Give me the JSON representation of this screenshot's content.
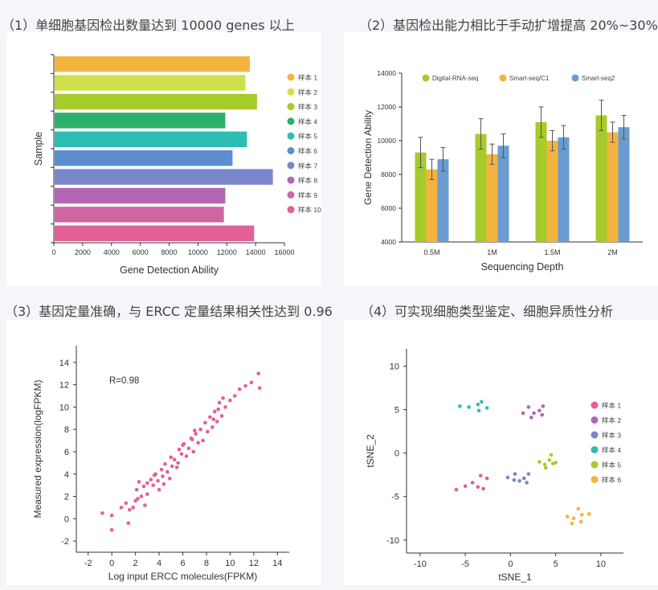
{
  "titles": {
    "p1": "（1）单细胞基因检出数量达到 10000 genes 以上",
    "p2": "（2）基因检出能力相比于手动扩增提高 20%~30%",
    "p3": "（3）基因定量准确，与 ERCC 定量结果相关性达到 0.96",
    "p4": "（4）可实现细胞类型鉴定、细胞异质性分析"
  },
  "colors": {
    "bar_panel": [
      "#f3b43f",
      "#cfe04b",
      "#a6cb2b",
      "#2db06a",
      "#2cbdb4",
      "#5b8fd0",
      "#7a86cb",
      "#b266b5",
      "#d065a4",
      "#e45f96"
    ],
    "grouped": [
      "#a6cb2b",
      "#f3b43f",
      "#6a9cd2"
    ],
    "scatter_pink": "#e45f96",
    "tsne": [
      "#e45f96",
      "#b266b5",
      "#7a86cb",
      "#2cbdb4",
      "#a6cb2b",
      "#f3b43f"
    ]
  },
  "chart_data": [
    {
      "type": "bar",
      "orientation": "horizontal",
      "title": "（1）单细胞基因检出数量达到 10000 genes 以上",
      "xlabel": "Gene Detection Ability",
      "ylabel": "Sample",
      "xlim": [
        0,
        16000
      ],
      "xticks": [
        "0",
        "2000",
        "4000",
        "6000",
        "8000",
        "10000",
        "12000",
        "14000",
        "16000"
      ],
      "xtick_values": [
        0,
        2000,
        4000,
        6000,
        8000,
        10000,
        12000,
        14000,
        16000
      ],
      "categories": [
        "样本 1",
        "样本 2",
        "样本 3",
        "样本 4",
        "样本 5",
        "样本 6",
        "样本 7",
        "样本 8",
        "样本 9",
        "样本 10"
      ],
      "values": [
        13600,
        13300,
        14100,
        11900,
        13400,
        12400,
        15200,
        11900,
        11800,
        13900
      ],
      "legend_position": "right"
    },
    {
      "type": "bar",
      "title": "（2）基因检出能力相比于手动扩增提高 20%~30%",
      "xlabel": "Sequencing Depth",
      "ylabel": "Gene Detection Ability",
      "ylim": [
        4000,
        14000
      ],
      "yticks": [
        "4000",
        "6000",
        "8000",
        "10000",
        "12000",
        "14000"
      ],
      "ytick_values": [
        4000,
        6000,
        8000,
        10000,
        12000,
        14000
      ],
      "categories": [
        "0.5M",
        "1M",
        "1.5M",
        "2M"
      ],
      "series": [
        {
          "name": "Digital-RNA-seq",
          "values": [
            9300,
            10400,
            11100,
            11500
          ],
          "errors": [
            900,
            900,
            900,
            900
          ]
        },
        {
          "name": "Smart-seq/C1",
          "values": [
            8300,
            9200,
            10000,
            10500
          ],
          "errors": [
            600,
            600,
            600,
            600
          ]
        },
        {
          "name": "Smart-seq2",
          "values": [
            8900,
            9700,
            10200,
            10800
          ],
          "errors": [
            700,
            700,
            700,
            700
          ]
        }
      ],
      "legend_position": "top"
    },
    {
      "type": "scatter",
      "title": "（3）基因定量准确，与 ERCC 定量结果相关性达到 0.96",
      "xlabel": "Log input ERCC molecules(FPKM)",
      "ylabel": "Measured expression(logFPKM)",
      "annotation": "R=0.98",
      "xlim": [
        -3,
        15
      ],
      "ylim": [
        -3,
        15.5
      ],
      "xticks": [
        "-2",
        "0",
        "2",
        "4",
        "6",
        "8",
        "10",
        "12",
        "14"
      ],
      "xtick_values": [
        -2,
        0,
        2,
        4,
        6,
        8,
        10,
        12,
        14
      ],
      "yticks": [
        "-2",
        "0",
        "2",
        "4",
        "6",
        "8",
        "10",
        "12",
        "14"
      ],
      "ytick_values": [
        -2,
        0,
        2,
        4,
        6,
        8,
        10,
        12,
        14
      ],
      "points": [
        [
          -0.8,
          0.5
        ],
        [
          0.0,
          0.3
        ],
        [
          0.0,
          -1.0
        ],
        [
          0.8,
          1.0
        ],
        [
          1.2,
          1.4
        ],
        [
          1.5,
          0.8
        ],
        [
          1.4,
          -0.4
        ],
        [
          1.8,
          1.0
        ],
        [
          2.0,
          1.6
        ],
        [
          2.1,
          2.6
        ],
        [
          2.3,
          3.3
        ],
        [
          2.5,
          2.0
        ],
        [
          2.7,
          2.9
        ],
        [
          2.8,
          1.2
        ],
        [
          3.0,
          2.2
        ],
        [
          3.3,
          3.5
        ],
        [
          3.5,
          3.0
        ],
        [
          3.7,
          4.0
        ],
        [
          3.9,
          3.4
        ],
        [
          4.0,
          2.6
        ],
        [
          4.3,
          3.8
        ],
        [
          4.5,
          4.9
        ],
        [
          4.7,
          4.2
        ],
        [
          4.9,
          3.6
        ],
        [
          5.1,
          4.7
        ],
        [
          5.3,
          5.3
        ],
        [
          5.5,
          4.6
        ],
        [
          5.7,
          6.2
        ],
        [
          5.9,
          5.8
        ],
        [
          6.1,
          6.7
        ],
        [
          6.3,
          5.6
        ],
        [
          6.5,
          6.3
        ],
        [
          6.7,
          7.2
        ],
        [
          6.9,
          6.0
        ],
        [
          7.1,
          7.6
        ],
        [
          7.3,
          6.8
        ],
        [
          7.5,
          8.0
        ],
        [
          7.7,
          7.0
        ],
        [
          7.9,
          8.6
        ],
        [
          8.1,
          7.8
        ],
        [
          8.3,
          9.1
        ],
        [
          8.5,
          8.2
        ],
        [
          8.7,
          9.6
        ],
        [
          8.9,
          8.7
        ],
        [
          9.1,
          10.4
        ],
        [
          9.3,
          9.2
        ],
        [
          9.6,
          10.0
        ],
        [
          10.0,
          10.6
        ],
        [
          10.4,
          11.0
        ],
        [
          10.8,
          11.6
        ],
        [
          11.3,
          11.9
        ],
        [
          11.8,
          12.2
        ],
        [
          12.4,
          13.0
        ],
        [
          12.5,
          11.7
        ],
        [
          4.2,
          4.4
        ],
        [
          5.6,
          5.0
        ],
        [
          6.0,
          6.6
        ],
        [
          7.0,
          7.9
        ],
        [
          8.6,
          8.9
        ],
        [
          9.0,
          9.8
        ],
        [
          3.0,
          3.2
        ],
        [
          2.2,
          1.8
        ],
        [
          4.4,
          3.1
        ],
        [
          6.8,
          7.1
        ],
        [
          9.4,
          10.8
        ],
        [
          5.0,
          5.5
        ],
        [
          3.6,
          3.9
        ]
      ]
    },
    {
      "type": "scatter",
      "title": "（4）可实现细胞类型鉴定、细胞异质性分析",
      "xlabel": "tSNE_1",
      "ylabel": "tSNE_2",
      "xlim": [
        -11.5,
        12.5
      ],
      "ylim": [
        -11.5,
        12
      ],
      "xticks": [
        "-10",
        "-5",
        "0",
        "5",
        "10"
      ],
      "xtick_values": [
        -10,
        -5,
        0,
        5,
        10
      ],
      "yticks": [
        "-10",
        "-5",
        "0",
        "5",
        "10"
      ],
      "ytick_values": [
        -10,
        -5,
        0,
        5,
        10
      ],
      "legend_position": "right",
      "series": [
        {
          "name": "样本 1",
          "points": [
            [
              -6.0,
              -4.2
            ],
            [
              -5.0,
              -3.8
            ],
            [
              -4.2,
              -3.4
            ],
            [
              -3.3,
              -2.6
            ],
            [
              -3.6,
              -3.9
            ],
            [
              -2.6,
              -2.9
            ],
            [
              -3.0,
              -4.1
            ]
          ]
        },
        {
          "name": "样本 2",
          "points": [
            [
              1.4,
              4.6
            ],
            [
              2.0,
              5.3
            ],
            [
              2.6,
              4.6
            ],
            [
              3.2,
              4.9
            ],
            [
              3.6,
              5.4
            ],
            [
              2.3,
              4.1
            ],
            [
              3.5,
              4.4
            ]
          ]
        },
        {
          "name": "样本 3",
          "points": [
            [
              -0.3,
              -2.8
            ],
            [
              0.5,
              -2.4
            ],
            [
              1.0,
              -3.2
            ],
            [
              1.5,
              -2.9
            ],
            [
              2.0,
              -2.4
            ],
            [
              1.8,
              -3.4
            ],
            [
              0.4,
              -3.1
            ]
          ]
        },
        {
          "name": "样本 4",
          "points": [
            [
              -5.6,
              5.4
            ],
            [
              -4.6,
              5.3
            ],
            [
              -3.5,
              4.9
            ],
            [
              -3.2,
              5.9
            ],
            [
              -2.6,
              5.2
            ],
            [
              -3.6,
              5.6
            ]
          ]
        },
        {
          "name": "样本 5",
          "points": [
            [
              3.2,
              -1.0
            ],
            [
              3.8,
              -1.3
            ],
            [
              4.3,
              -0.8
            ],
            [
              4.7,
              -1.2
            ],
            [
              4.5,
              -0.2
            ],
            [
              3.9,
              -1.7
            ],
            [
              5.0,
              -1.1
            ]
          ]
        },
        {
          "name": "样本 6",
          "points": [
            [
              6.3,
              -7.3
            ],
            [
              7.0,
              -7.5
            ],
            [
              7.5,
              -6.4
            ],
            [
              7.9,
              -7.1
            ],
            [
              8.7,
              -7.0
            ],
            [
              6.8,
              -8.1
            ],
            [
              7.8,
              -7.9
            ]
          ]
        }
      ]
    }
  ]
}
